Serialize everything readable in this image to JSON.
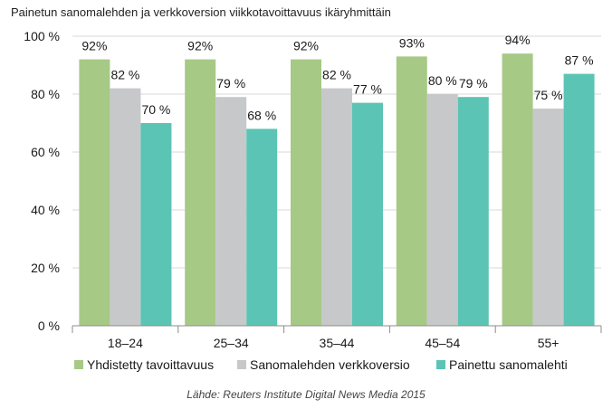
{
  "title": "Painetun sanomalehden ja verkkoversion viikkotavoittavuus ikäryhmittäin",
  "source": "Lähde: Reuters Institute Digital News Media 2015",
  "chart_data": {
    "type": "bar",
    "title": "Painetun sanomalehden ja verkkoversion viikkotavoittavuus ikäryhmittäin",
    "categories": [
      "18–24",
      "25–34",
      "35–44",
      "45–54",
      "55+"
    ],
    "ylim": [
      0,
      100
    ],
    "yticks": [
      0,
      20,
      40,
      60,
      80,
      100
    ],
    "ytick_labels": [
      "0 %",
      "20 %",
      "40 %",
      "60 %",
      "80 %",
      "100 %"
    ],
    "grid": true,
    "legend_position": "bottom",
    "series": [
      {
        "name": "Yhdistetty tavoittavuus",
        "color": "#a6c985",
        "values": [
          92,
          92,
          92,
          93,
          94
        ],
        "labels": [
          "92%",
          "92%",
          "92%",
          "93%",
          "94%"
        ]
      },
      {
        "name": "Sanomalehden verkkoversio",
        "color": "#c7c8ca",
        "values": [
          82,
          79,
          82,
          80,
          75
        ],
        "labels": [
          "82 %",
          "79 %",
          "82 %",
          "80 %",
          "75 %"
        ]
      },
      {
        "name": "Painettu sanomalehti",
        "color": "#5bc4b4",
        "values": [
          70,
          68,
          77,
          79,
          87
        ],
        "labels": [
          "70 %",
          "68 %",
          "77 %",
          "79 %",
          "87 %"
        ]
      }
    ]
  }
}
